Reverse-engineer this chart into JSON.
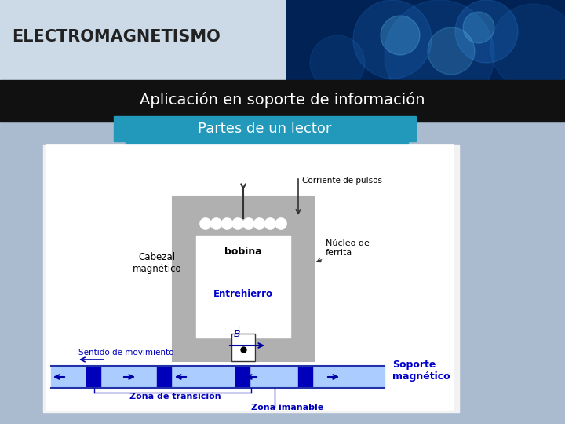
{
  "title_main": "ELECTROMAGNETISMO",
  "title_sub": "Aplicación en soporte de información",
  "title_section": "Partes de un lector",
  "bg_top_left_color": "#ccd9e8",
  "bg_top_right_color": "#0055aa",
  "bar_black_color": "#111111",
  "section_bar_color": "#2299cc",
  "diagram_bg": "#f0f0f0",
  "diagram_border": "#888888",
  "blue_dark": "#0000cc",
  "blue_medium": "#3366cc",
  "text_color_main": "#111111",
  "text_color_blue": "#0000cc",
  "text_color_white": "#ffffff",
  "text_color_dark": "#333333"
}
